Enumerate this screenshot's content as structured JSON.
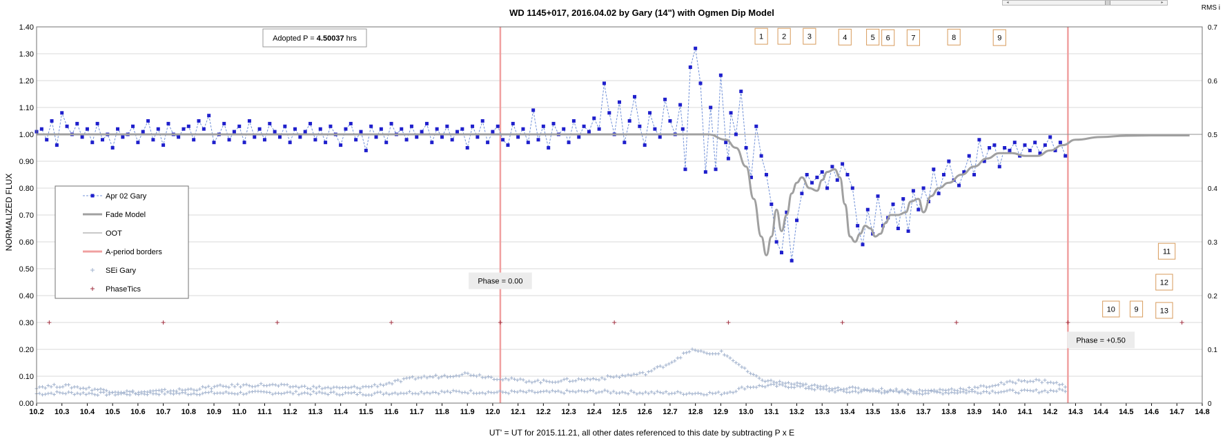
{
  "chart_data": {
    "type": "scatter",
    "title": "WD 1145+017, 2016.04.02 by Gary (14\")  with Ogmen Dip Model",
    "xlabel": "UT' = UT for 2015.11.21, all other dates referenced to this date by subtracting P x E",
    "ylabel": "NORMALIZED FLUX",
    "y2label": "RMS i",
    "xlim": [
      10.2,
      14.8
    ],
    "ylim": [
      0.0,
      1.4
    ],
    "y2lim": [
      0.0,
      0.7
    ],
    "x_ticks": [
      "10.2",
      "10.3",
      "10.4",
      "10.5",
      "10.6",
      "10.7",
      "10.8",
      "10.9",
      "11.0",
      "11.1",
      "11.2",
      "11.3",
      "11.4",
      "11.5",
      "11.6",
      "11.7",
      "11.8",
      "11.9",
      "12.0",
      "12.1",
      "12.2",
      "12.3",
      "12.4",
      "12.5",
      "12.6",
      "12.7",
      "12.8",
      "12.9",
      "13.0",
      "13.1",
      "13.2",
      "13.3",
      "13.4",
      "13.5",
      "13.6",
      "13.7",
      "13.8",
      "13.9",
      "14.0",
      "14.1",
      "14.2",
      "14.3",
      "14.4",
      "14.5",
      "14.6",
      "14.7",
      "14.8"
    ],
    "y_ticks": [
      "0.00",
      "0.10",
      "0.20",
      "0.30",
      "0.40",
      "0.50",
      "0.60",
      "0.70",
      "0.80",
      "0.90",
      "1.00",
      "1.10",
      "1.20",
      "1.30",
      "1.40"
    ],
    "y2_ticks": [
      "0",
      "0.1",
      "0.2",
      "0.3",
      "0.4",
      "0.5",
      "0.6",
      "0.7"
    ],
    "grid": true,
    "legend_position": "left-middle",
    "legend": [
      {
        "label": "Apr 02 Gary",
        "style": "dashed-square",
        "color": "#1f1fcc"
      },
      {
        "label": "Fade Model",
        "style": "thick-line",
        "color": "#a0a0a0"
      },
      {
        "label": "OOT",
        "style": "thin-line",
        "color": "#909090"
      },
      {
        "label": "A-period borders",
        "style": "thick-line",
        "color": "#f0a0a0"
      },
      {
        "label": "SEi  Gary",
        "style": "plus",
        "color": "#9fb0cc"
      },
      {
        "label": "PhaseTics",
        "style": "plus",
        "color": "#a03040"
      }
    ],
    "colors": {
      "flux": "#1f1fcc",
      "flux_line": "#7090d8",
      "model": "#a0a0a0",
      "oot": "#909090",
      "border": "#f0a0a0",
      "sei": "#9fb0cc",
      "phasetic": "#a03040",
      "label_box_border": "#d79a5a"
    },
    "adopted_period": {
      "prefix": "Adopted P = ",
      "value": "4.50037",
      "unit": " hrs"
    },
    "period_borders": [
      {
        "x": 12.03,
        "label": "Phase = 0.00",
        "label_x": 12.03,
        "label_y": 0.455
      },
      {
        "x": 14.27,
        "label": "Phase = +0.50",
        "label_x": 14.4,
        "label_y": 0.235
      }
    ],
    "phase_tics": {
      "y": 0.3,
      "x": [
        10.25,
        10.7,
        11.15,
        11.6,
        12.03,
        12.48,
        12.93,
        13.38,
        13.83,
        14.27,
        14.72
      ]
    },
    "dip_labels": [
      {
        "label": "1",
        "x": 13.06,
        "y": 1.365
      },
      {
        "label": "2",
        "x": 13.15,
        "y": 1.365
      },
      {
        "label": "3",
        "x": 13.25,
        "y": 1.365
      },
      {
        "label": "4",
        "x": 13.39,
        "y": 1.362
      },
      {
        "label": "5",
        "x": 13.5,
        "y": 1.362
      },
      {
        "label": "6",
        "x": 13.56,
        "y": 1.36
      },
      {
        "label": "7",
        "x": 13.66,
        "y": 1.36
      },
      {
        "label": "8",
        "x": 13.82,
        "y": 1.362
      },
      {
        "label": "9",
        "x": 14.0,
        "y": 1.36
      },
      {
        "label": "11",
        "x": 14.66,
        "y": 0.565
      },
      {
        "label": "12",
        "x": 14.65,
        "y": 0.45
      },
      {
        "label": "10",
        "x": 14.44,
        "y": 0.35
      },
      {
        "label": "9",
        "x": 14.54,
        "y": 0.35
      },
      {
        "label": "13",
        "x": 14.65,
        "y": 0.345
      }
    ],
    "oot": {
      "x": [
        10.2,
        14.8
      ],
      "y": [
        1.0,
        1.0
      ]
    },
    "fade_model": {
      "x": [
        10.2,
        10.6,
        11.0,
        11.5,
        12.0,
        12.5,
        12.85,
        12.92,
        12.96,
        13.0,
        13.03,
        13.06,
        13.08,
        13.1,
        13.12,
        13.14,
        13.16,
        13.18,
        13.2,
        13.22,
        13.25,
        13.28,
        13.3,
        13.32,
        13.35,
        13.37,
        13.39,
        13.41,
        13.43,
        13.45,
        13.47,
        13.49,
        13.51,
        13.53,
        13.55,
        13.57,
        13.6,
        13.63,
        13.65,
        13.68,
        13.7,
        13.73,
        13.76,
        13.8,
        13.85,
        13.9,
        13.95,
        14.0,
        14.05,
        14.1,
        14.15,
        14.2,
        14.25,
        14.3,
        14.4,
        14.5,
        14.6,
        14.75
      ],
      "y": [
        1.0,
        1.0,
        1.0,
        1.0,
        1.0,
        1.0,
        1.0,
        0.98,
        0.95,
        0.88,
        0.76,
        0.62,
        0.55,
        0.62,
        0.72,
        0.64,
        0.7,
        0.78,
        0.82,
        0.84,
        0.8,
        0.79,
        0.83,
        0.86,
        0.87,
        0.84,
        0.74,
        0.62,
        0.6,
        0.63,
        0.66,
        0.65,
        0.62,
        0.63,
        0.67,
        0.7,
        0.7,
        0.71,
        0.75,
        0.76,
        0.71,
        0.77,
        0.8,
        0.82,
        0.85,
        0.88,
        0.91,
        0.93,
        0.93,
        0.92,
        0.92,
        0.94,
        0.96,
        0.98,
        0.99,
        0.995,
        0.996,
        0.996
      ]
    },
    "flux": {
      "x": [
        10.2,
        10.22,
        10.24,
        10.26,
        10.28,
        10.3,
        10.32,
        10.34,
        10.36,
        10.38,
        10.4,
        10.42,
        10.44,
        10.46,
        10.48,
        10.5,
        10.52,
        10.54,
        10.56,
        10.58,
        10.6,
        10.62,
        10.64,
        10.66,
        10.68,
        10.7,
        10.72,
        10.74,
        10.76,
        10.78,
        10.8,
        10.82,
        10.84,
        10.86,
        10.88,
        10.9,
        10.92,
        10.94,
        10.96,
        10.98,
        11.0,
        11.02,
        11.04,
        11.06,
        11.08,
        11.1,
        11.12,
        11.14,
        11.16,
        11.18,
        11.2,
        11.22,
        11.24,
        11.26,
        11.28,
        11.3,
        11.32,
        11.34,
        11.36,
        11.38,
        11.4,
        11.42,
        11.44,
        11.46,
        11.48,
        11.5,
        11.52,
        11.54,
        11.56,
        11.58,
        11.6,
        11.62,
        11.64,
        11.66,
        11.68,
        11.7,
        11.72,
        11.74,
        11.76,
        11.78,
        11.8,
        11.82,
        11.84,
        11.86,
        11.88,
        11.9,
        11.92,
        11.94,
        11.96,
        11.98,
        12.0,
        12.02,
        12.04,
        12.06,
        12.08,
        12.1,
        12.12,
        12.14,
        12.16,
        12.18,
        12.2,
        12.22,
        12.24,
        12.26,
        12.28,
        12.3,
        12.32,
        12.34,
        12.36,
        12.38,
        12.4,
        12.42,
        12.44,
        12.46,
        12.48,
        12.5,
        12.52,
        12.54,
        12.56,
        12.58,
        12.6,
        12.62,
        12.64,
        12.66,
        12.68,
        12.7,
        12.72,
        12.74,
        12.75,
        12.76,
        12.78,
        12.8,
        12.82,
        12.84,
        12.86,
        12.88,
        12.9,
        12.92,
        12.93,
        12.94,
        12.96,
        12.98,
        13.0,
        13.02,
        13.04,
        13.06,
        13.08,
        13.1,
        13.12,
        13.14,
        13.16,
        13.18,
        13.2,
        13.22,
        13.24,
        13.26,
        13.28,
        13.3,
        13.32,
        13.34,
        13.36,
        13.38,
        13.4,
        13.42,
        13.44,
        13.46,
        13.48,
        13.5,
        13.52,
        13.54,
        13.56,
        13.58,
        13.6,
        13.62,
        13.64,
        13.66,
        13.68,
        13.7,
        13.72,
        13.74,
        13.76,
        13.78,
        13.8,
        13.82,
        13.84,
        13.86,
        13.88,
        13.9,
        13.92,
        13.94,
        13.96,
        13.98,
        14.0,
        14.02,
        14.04,
        14.06,
        14.08,
        14.1,
        14.12,
        14.14,
        14.16,
        14.18,
        14.2,
        14.22,
        14.24,
        14.26
      ],
      "y": [
        1.01,
        1.02,
        0.98,
        1.05,
        0.96,
        1.08,
        1.03,
        1.0,
        1.04,
        0.99,
        1.02,
        0.97,
        1.04,
        0.98,
        1.0,
        0.95,
        1.02,
        0.99,
        1.0,
        1.03,
        0.97,
        1.01,
        1.05,
        0.98,
        1.02,
        0.96,
        1.04,
        1.0,
        0.99,
        1.02,
        1.03,
        0.98,
        1.05,
        1.02,
        1.07,
        0.97,
        1.0,
        1.04,
        0.98,
        1.01,
        1.03,
        0.97,
        1.05,
        0.99,
        1.02,
        0.98,
        1.04,
        1.01,
        0.99,
        1.03,
        0.97,
        1.02,
        0.99,
        1.01,
        1.04,
        0.98,
        1.02,
        0.97,
        1.03,
        1.0,
        0.96,
        1.02,
        1.04,
        0.98,
        1.01,
        0.94,
        1.03,
        0.99,
        1.02,
        0.97,
        1.04,
        1.0,
        1.02,
        0.98,
        1.03,
        0.99,
        1.01,
        1.04,
        0.97,
        1.02,
        0.99,
        1.03,
        0.98,
        1.01,
        1.02,
        0.95,
        1.03,
        0.99,
        1.05,
        0.97,
        1.01,
        1.03,
        0.98,
        0.96,
        1.04,
        0.99,
        1.02,
        0.97,
        1.09,
        0.98,
        1.03,
        0.95,
        1.04,
        1.0,
        1.02,
        0.97,
        1.05,
        0.99,
        1.03,
        1.01,
        1.06,
        1.02,
        1.19,
        1.08,
        1.0,
        1.12,
        0.97,
        1.05,
        1.14,
        1.03,
        0.96,
        1.08,
        1.02,
        0.99,
        1.13,
        1.05,
        1.0,
        1.11,
        1.02,
        0.87,
        1.25,
        1.32,
        1.19,
        0.86,
        1.1,
        0.87,
        1.22,
        0.97,
        0.91,
        1.08,
        1.0,
        1.16,
        0.95,
        0.84,
        1.03,
        0.92,
        0.85,
        0.74,
        0.6,
        0.56,
        0.71,
        0.53,
        0.68,
        0.78,
        0.85,
        0.82,
        0.84,
        0.86,
        0.8,
        0.88,
        0.83,
        0.89,
        0.85,
        0.8,
        0.66,
        0.59,
        0.72,
        0.63,
        0.77,
        0.66,
        0.69,
        0.74,
        0.65,
        0.76,
        0.64,
        0.79,
        0.72,
        0.8,
        0.75,
        0.87,
        0.78,
        0.85,
        0.9,
        0.83,
        0.81,
        0.86,
        0.92,
        0.85,
        0.98,
        0.9,
        0.95,
        0.96,
        0.88,
        0.95,
        0.94,
        0.97,
        0.92,
        0.96,
        0.94,
        0.97,
        0.93,
        0.96,
        0.99,
        0.94,
        0.97,
        0.92
      ]
    },
    "sei_lower": {
      "x": [
        10.2,
        10.3,
        10.4,
        10.5,
        10.6,
        10.7,
        10.8,
        10.9,
        11.0,
        11.1,
        11.2,
        11.3,
        11.4,
        11.5,
        11.6,
        11.7,
        11.8,
        11.9,
        12.0,
        12.1,
        12.2,
        12.3,
        12.4,
        12.5,
        12.6,
        12.7,
        12.8,
        12.9,
        12.95,
        13.0,
        13.1,
        13.2,
        13.3,
        13.4,
        13.5,
        13.6,
        13.7,
        13.8,
        13.9,
        14.0,
        14.1,
        14.2,
        14.27
      ],
      "y": [
        0.035,
        0.038,
        0.036,
        0.034,
        0.035,
        0.037,
        0.036,
        0.038,
        0.037,
        0.039,
        0.038,
        0.037,
        0.036,
        0.035,
        0.038,
        0.04,
        0.041,
        0.042,
        0.04,
        0.041,
        0.04,
        0.042,
        0.043,
        0.041,
        0.039,
        0.038,
        0.037,
        0.036,
        0.045,
        0.06,
        0.065,
        0.062,
        0.05,
        0.042,
        0.045,
        0.04,
        0.038,
        0.04,
        0.042,
        0.044,
        0.043,
        0.046,
        0.048
      ]
    },
    "sei_upper": {
      "x": [
        10.2,
        10.3,
        10.4,
        10.5,
        10.6,
        10.7,
        10.8,
        10.9,
        11.0,
        11.1,
        11.2,
        11.3,
        11.4,
        11.5,
        11.6,
        11.7,
        11.8,
        11.9,
        12.0,
        12.1,
        12.2,
        12.3,
        12.4,
        12.5,
        12.6,
        12.7,
        12.75,
        12.8,
        12.85,
        12.9,
        12.95,
        13.0,
        13.05,
        13.1,
        13.2,
        13.3,
        13.4,
        13.5,
        13.6,
        13.7,
        13.8,
        13.9,
        14.0,
        14.1,
        14.2,
        14.27
      ],
      "y": [
        0.06,
        0.065,
        0.055,
        0.045,
        0.04,
        0.045,
        0.05,
        0.06,
        0.065,
        0.068,
        0.062,
        0.058,
        0.055,
        0.06,
        0.075,
        0.095,
        0.1,
        0.11,
        0.095,
        0.085,
        0.08,
        0.085,
        0.09,
        0.1,
        0.11,
        0.15,
        0.18,
        0.2,
        0.18,
        0.19,
        0.16,
        0.12,
        0.09,
        0.08,
        0.07,
        0.06,
        0.055,
        0.05,
        0.048,
        0.045,
        0.05,
        0.055,
        0.07,
        0.085,
        0.08,
        0.06
      ]
    }
  }
}
